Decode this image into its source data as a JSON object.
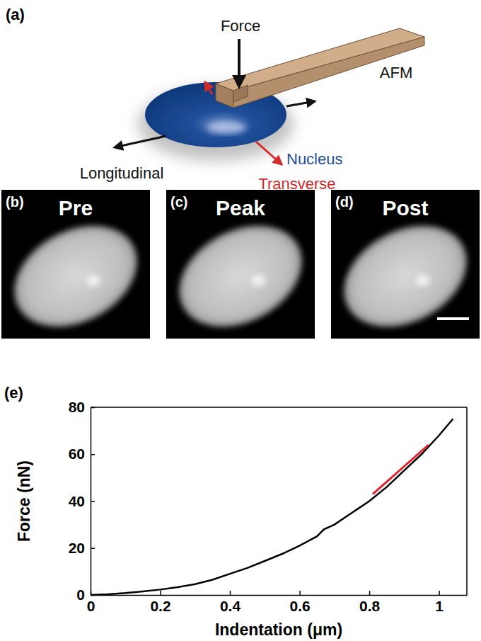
{
  "figure": {
    "panel_labels": [
      "(a)",
      "(b)",
      "(c)",
      "(d)",
      "(e)"
    ],
    "schematic": {
      "force": "Force",
      "afm": "AFM",
      "nucleus": "Nucleus",
      "longitudinal": "Longitudinal",
      "transverse": "Transverse"
    },
    "images": [
      "Pre",
      "Peak",
      "Post"
    ]
  },
  "chart_data": {
    "type": "line",
    "x_label": "Indentation (μm)",
    "y_label": "Force (nN)",
    "xlim": [
      0,
      1.08
    ],
    "ylim": [
      0,
      80
    ],
    "xticks": [
      0,
      0.2,
      0.4,
      0.6,
      0.8,
      1
    ],
    "yticks": [
      0,
      20,
      40,
      60,
      80
    ],
    "series": [
      {
        "color": "#000000",
        "line_style": "solid",
        "x": [
          0,
          0.05,
          0.1,
          0.15,
          0.2,
          0.25,
          0.3,
          0.35,
          0.4,
          0.45,
          0.5,
          0.55,
          0.6,
          0.65,
          0.67,
          0.7,
          0.75,
          0.8,
          0.85,
          0.9,
          0.95,
          1.0,
          1.04
        ],
        "values": [
          0,
          0.3,
          0.8,
          1.5,
          2.3,
          3.3,
          4.6,
          6.5,
          9,
          11.5,
          14.5,
          17.5,
          21,
          25,
          28,
          30,
          35,
          40,
          46,
          53,
          60,
          68,
          75
        ]
      },
      {
        "color": "#e8202a",
        "line_style": "solid",
        "x": [
          0.81,
          0.97
        ],
        "values": [
          43,
          64
        ]
      }
    ]
  }
}
